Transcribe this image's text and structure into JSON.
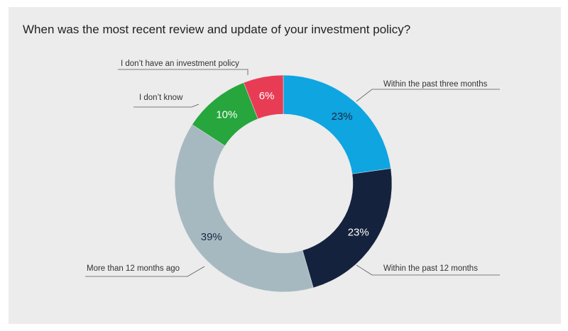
{
  "header": {
    "title": "When was the most recent review and update of your investment policy?"
  },
  "chart_data": {
    "type": "pie",
    "variant": "donut",
    "title": "When was the most recent review and update of your investment policy?",
    "unit": "%",
    "start_angle_deg": 0,
    "direction": "clockwise",
    "slices": [
      {
        "label": "Within the past three months",
        "value": 23,
        "value_label": "23%",
        "color": "#0ea5e0",
        "text_color": "#1a2742"
      },
      {
        "label": "Within the past 12 months",
        "value": 23,
        "value_label": "23%",
        "color": "#14223d",
        "text_color": "#ffffff"
      },
      {
        "label": "More than 12 months ago",
        "value": 39,
        "value_label": "39%",
        "color": "#a7b9c0",
        "text_color": "#1a2742"
      },
      {
        "label": "I don’t know",
        "value": 10,
        "value_label": "10%",
        "color": "#26a63c",
        "text_color": "#ffffff"
      },
      {
        "label": "I don’t have an investment policy",
        "value": 6,
        "value_label": "6%",
        "color": "#e83c55",
        "text_color": "#ffffff"
      }
    ]
  }
}
